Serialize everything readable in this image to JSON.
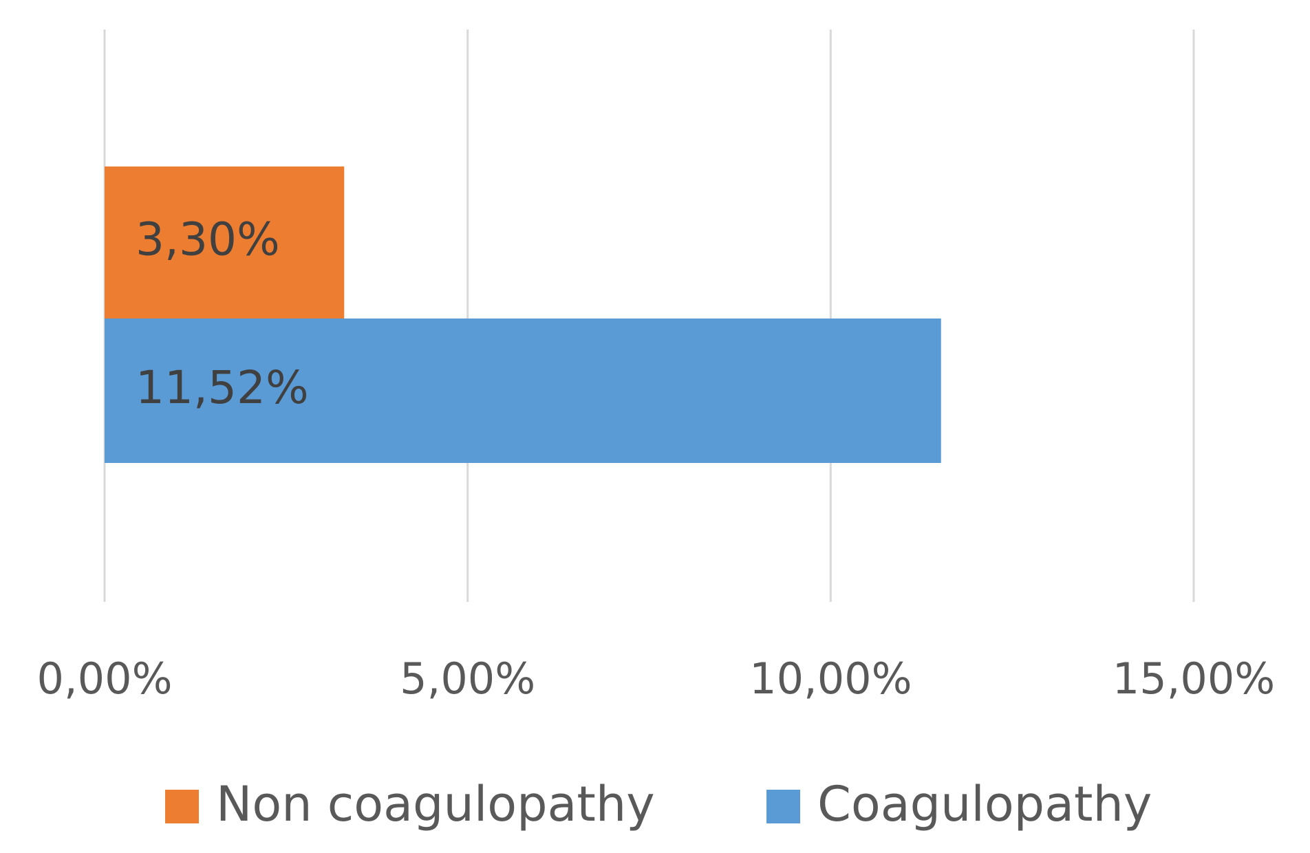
{
  "chart_data": {
    "type": "bar",
    "orientation": "horizontal",
    "categories": [
      null
    ],
    "series": [
      {
        "name": "Non coagulopathy",
        "color": "#ed7d31",
        "values": [
          3.3
        ],
        "value_labels": [
          "3,30%"
        ]
      },
      {
        "name": "Coagulopathy",
        "color": "#5b9bd5",
        "values": [
          11.52
        ],
        "value_labels": [
          "11,52%"
        ]
      }
    ],
    "xlim": [
      0,
      15
    ],
    "xticks": [
      {
        "value": 0,
        "label": "0,00%"
      },
      {
        "value": 5,
        "label": "5,00%"
      },
      {
        "value": 10,
        "label": "10,00%"
      },
      {
        "value": 15,
        "label": "15,00%"
      }
    ],
    "grid": true,
    "legend": "bottom"
  }
}
